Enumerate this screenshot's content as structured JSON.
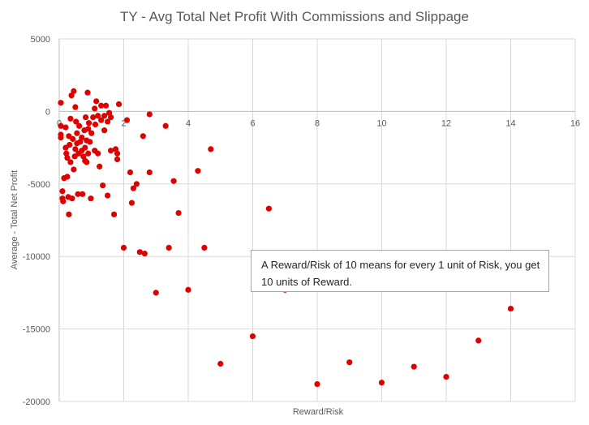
{
  "chart_data": {
    "type": "scatter",
    "title": "TY - Avg Total Net Profit With Commissions and Slippage",
    "xlabel": "Reward/Risk",
    "ylabel": "Average - Total Net Profit",
    "xlim": [
      0,
      16
    ],
    "ylim": [
      -20000,
      5000
    ],
    "x_ticks": [
      "0",
      "2",
      "4",
      "6",
      "8",
      "10",
      "12",
      "14",
      "16"
    ],
    "y_ticks": [
      "5000",
      "0",
      "-5000",
      "-10000",
      "-15000",
      "-20000"
    ],
    "grid": true,
    "legend": "none",
    "marker_color": "#e00000",
    "annotation": "A Reward/Risk of 10 means for every 1 unit of Risk, you get 10 units of Reward.",
    "points": [
      [
        0.05,
        600
      ],
      [
        0.05,
        -1000
      ],
      [
        0.05,
        -1600
      ],
      [
        0.05,
        -1800
      ],
      [
        0.1,
        -5500
      ],
      [
        0.1,
        -6000
      ],
      [
        0.12,
        -6200
      ],
      [
        0.15,
        -4600
      ],
      [
        0.2,
        -1100
      ],
      [
        0.2,
        -2500
      ],
      [
        0.22,
        -2900
      ],
      [
        0.25,
        -3200
      ],
      [
        0.25,
        -4500
      ],
      [
        0.28,
        -5900
      ],
      [
        0.3,
        -7100
      ],
      [
        0.3,
        -1700
      ],
      [
        0.32,
        -2300
      ],
      [
        0.35,
        -500
      ],
      [
        0.35,
        -3500
      ],
      [
        0.38,
        1100
      ],
      [
        0.4,
        -6000
      ],
      [
        0.42,
        -1900
      ],
      [
        0.45,
        1400
      ],
      [
        0.45,
        -4000
      ],
      [
        0.48,
        -3100
      ],
      [
        0.5,
        300
      ],
      [
        0.5,
        -2600
      ],
      [
        0.52,
        -700
      ],
      [
        0.55,
        -1500
      ],
      [
        0.55,
        -2200
      ],
      [
        0.58,
        -5700
      ],
      [
        0.6,
        -2900
      ],
      [
        0.62,
        -1000
      ],
      [
        0.65,
        -2100
      ],
      [
        0.7,
        -1800
      ],
      [
        0.7,
        -2700
      ],
      [
        0.72,
        -5700
      ],
      [
        0.75,
        -3100
      ],
      [
        0.78,
        -1300
      ],
      [
        0.8,
        -2500
      ],
      [
        0.8,
        -3400
      ],
      [
        0.82,
        -400
      ],
      [
        0.85,
        -2000
      ],
      [
        0.85,
        -3500
      ],
      [
        0.88,
        1300
      ],
      [
        0.9,
        -1200
      ],
      [
        0.9,
        -2900
      ],
      [
        0.92,
        -800
      ],
      [
        0.95,
        -2100
      ],
      [
        0.98,
        -6000
      ],
      [
        1.0,
        -1500
      ],
      [
        1.05,
        -400
      ],
      [
        1.1,
        200
      ],
      [
        1.1,
        -2700
      ],
      [
        1.12,
        -900
      ],
      [
        1.15,
        700
      ],
      [
        1.2,
        -300
      ],
      [
        1.2,
        -2900
      ],
      [
        1.25,
        -3800
      ],
      [
        1.3,
        400
      ],
      [
        1.3,
        -600
      ],
      [
        1.35,
        -5100
      ],
      [
        1.4,
        -1300
      ],
      [
        1.4,
        -300
      ],
      [
        1.45,
        400
      ],
      [
        1.5,
        -700
      ],
      [
        1.5,
        -5800
      ],
      [
        1.55,
        -100
      ],
      [
        1.6,
        -400
      ],
      [
        1.6,
        -2700
      ],
      [
        1.7,
        -7100
      ],
      [
        1.75,
        -2600
      ],
      [
        1.8,
        -3300
      ],
      [
        1.8,
        -2900
      ],
      [
        1.85,
        500
      ],
      [
        2.0,
        -9400
      ],
      [
        2.1,
        -600
      ],
      [
        2.2,
        -4200
      ],
      [
        2.25,
        -6300
      ],
      [
        2.3,
        -5300
      ],
      [
        2.4,
        -5000
      ],
      [
        2.5,
        -9700
      ],
      [
        2.6,
        -1700
      ],
      [
        2.65,
        -9800
      ],
      [
        2.8,
        -4200
      ],
      [
        2.8,
        -200
      ],
      [
        3.0,
        -12500
      ],
      [
        3.3,
        -1000
      ],
      [
        3.4,
        -9400
      ],
      [
        3.55,
        -4800
      ],
      [
        3.7,
        -7000
      ],
      [
        4.0,
        -12300
      ],
      [
        4.3,
        -4100
      ],
      [
        4.5,
        -9400
      ],
      [
        4.7,
        -2600
      ],
      [
        5.0,
        -17400
      ],
      [
        6.0,
        -15500
      ],
      [
        6.5,
        -6700
      ],
      [
        7.0,
        -12300
      ],
      [
        8.0,
        -18800
      ],
      [
        9.0,
        -17300
      ],
      [
        10.0,
        -18700
      ],
      [
        11.0,
        -17600
      ],
      [
        12.0,
        -18300
      ],
      [
        13.0,
        -15800
      ],
      [
        14.0,
        -13600
      ]
    ]
  }
}
